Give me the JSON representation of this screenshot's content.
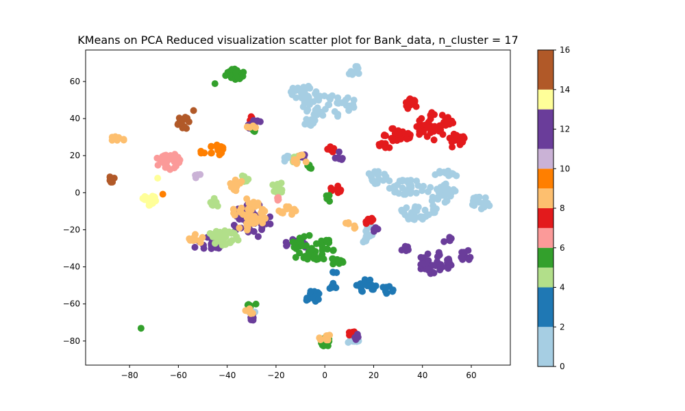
{
  "chart_data": {
    "type": "scatter",
    "title": "KMeans on PCA Reduced visualization scatter plot for Bank_data, n_cluster = 17",
    "xlabel": "",
    "ylabel": "",
    "xlim": [
      -98,
      76
    ],
    "ylim": [
      -93,
      77
    ],
    "x_ticks": [
      -80,
      -60,
      -40,
      -20,
      0,
      20,
      40,
      60
    ],
    "y_ticks": [
      -80,
      -60,
      -40,
      -20,
      0,
      20,
      40,
      60
    ],
    "x_tick_labels": [
      "−80",
      "−60",
      "−40",
      "−20",
      "0",
      "20",
      "40",
      "60"
    ],
    "y_tick_labels": [
      "−80",
      "−60",
      "−40",
      "−20",
      "0",
      "20",
      "40",
      "60"
    ],
    "grid": false,
    "colormap": "Paired",
    "colorbar": {
      "min": 0,
      "max": 16,
      "ticks": [
        0,
        2,
        4,
        6,
        8,
        10,
        12,
        14,
        16
      ],
      "tick_labels": [
        "0",
        "2",
        "4",
        "6",
        "8",
        "10",
        "12",
        "14",
        "16"
      ],
      "bands": [
        {
          "from": 0,
          "to": 2,
          "color": "#a6cee3"
        },
        {
          "from": 2,
          "to": 4,
          "color": "#1f78b4"
        },
        {
          "from": 4,
          "to": 5,
          "color": "#b2df8a"
        },
        {
          "from": 5,
          "to": 6,
          "color": "#33a02c"
        },
        {
          "from": 6,
          "to": 7,
          "color": "#fb9a99"
        },
        {
          "from": 7,
          "to": 8,
          "color": "#e31a1c"
        },
        {
          "from": 8,
          "to": 9,
          "color": "#fdbf6f"
        },
        {
          "from": 9,
          "to": 10,
          "color": "#ff7f00"
        },
        {
          "from": 10,
          "to": 11,
          "color": "#cab2d6"
        },
        {
          "from": 11,
          "to": 13,
          "color": "#6a3d9a"
        },
        {
          "from": 13,
          "to": 14,
          "color": "#ffff99"
        },
        {
          "from": 14,
          "to": 16,
          "color": "#b15928"
        }
      ]
    },
    "marker_color_by_cluster": {
      "0": "#a6cee3",
      "1": "#a6cee3",
      "2": "#1f78b4",
      "3": "#1f78b4",
      "4": "#b2df8a",
      "5": "#33a02c",
      "6": "#fb9a99",
      "7": "#e31a1c",
      "8": "#fdbf6f",
      "9": "#ff7f00",
      "10": "#cab2d6",
      "11": "#6a3d9a",
      "12": "#6a3d9a",
      "13": "#ffff99",
      "14": "#b15928",
      "15": "#b15928",
      "16": "#b15928"
    },
    "clusters": [
      {
        "cluster": 0,
        "x": 12,
        "y": 66,
        "rx": 3,
        "ry": 2.5,
        "n": 12
      },
      {
        "cluster": 0,
        "x": -8,
        "y": 54,
        "rx": 6,
        "ry": 5,
        "n": 30
      },
      {
        "cluster": 0,
        "x": 2,
        "y": 47,
        "rx": 12,
        "ry": 6,
        "n": 40
      },
      {
        "cluster": 0,
        "x": -6,
        "y": 38,
        "rx": 2.5,
        "ry": 2,
        "n": 8
      },
      {
        "cluster": 1,
        "x": 22,
        "y": 8,
        "rx": 5,
        "ry": 4,
        "n": 18
      },
      {
        "cluster": 1,
        "x": 34,
        "y": 3,
        "rx": 8,
        "ry": 4,
        "n": 30
      },
      {
        "cluster": 0,
        "x": 38,
        "y": -10,
        "rx": 8,
        "ry": 5,
        "n": 30
      },
      {
        "cluster": 0,
        "x": 48,
        "y": 0,
        "rx": 6,
        "ry": 6,
        "n": 25
      },
      {
        "cluster": 0,
        "x": 50,
        "y": 10,
        "rx": 5,
        "ry": 2,
        "n": 12
      },
      {
        "cluster": 1,
        "x": 64,
        "y": -5,
        "rx": 4,
        "ry": 4,
        "n": 18
      },
      {
        "cluster": 1,
        "x": 17,
        "y": -22,
        "rx": 4,
        "ry": 5,
        "n": 14
      },
      {
        "cluster": 1,
        "x": -30,
        "y": -64,
        "rx": 2,
        "ry": 2,
        "n": 6
      },
      {
        "cluster": 1,
        "x": 12,
        "y": -80,
        "rx": 3,
        "ry": 2,
        "n": 8
      },
      {
        "cluster": 1,
        "x": -14,
        "y": 18,
        "rx": 3,
        "ry": 2,
        "n": 8
      },
      {
        "cluster": 3,
        "x": -5,
        "y": -56,
        "rx": 4,
        "ry": 3,
        "n": 16
      },
      {
        "cluster": 3,
        "x": 3,
        "y": -50,
        "rx": 2,
        "ry": 2,
        "n": 8
      },
      {
        "cluster": 3,
        "x": 17,
        "y": -50,
        "rx": 4,
        "ry": 4,
        "n": 18
      },
      {
        "cluster": 3,
        "x": 26,
        "y": -52,
        "rx": 2.5,
        "ry": 2.5,
        "n": 8
      },
      {
        "cluster": 3,
        "x": 4,
        "y": -43,
        "rx": 1,
        "ry": 1,
        "n": 3
      },
      {
        "cluster": 7,
        "x": 35,
        "y": 48,
        "rx": 3,
        "ry": 3,
        "n": 12
      },
      {
        "cluster": 7,
        "x": 30,
        "y": 32,
        "rx": 6,
        "ry": 5,
        "n": 28
      },
      {
        "cluster": 7,
        "x": 45,
        "y": 36,
        "rx": 8,
        "ry": 8,
        "n": 45
      },
      {
        "cluster": 7,
        "x": 54,
        "y": 28,
        "rx": 4,
        "ry": 4,
        "n": 16
      },
      {
        "cluster": 7,
        "x": 24,
        "y": 25,
        "rx": 3,
        "ry": 2,
        "n": 8
      },
      {
        "cluster": 7,
        "x": 5,
        "y": 2,
        "rx": 3,
        "ry": 2,
        "n": 8
      },
      {
        "cluster": 7,
        "x": 18,
        "y": -15,
        "rx": 2,
        "ry": 2,
        "n": 6
      },
      {
        "cluster": 7,
        "x": 11,
        "y": -76,
        "rx": 2,
        "ry": 2,
        "n": 5
      },
      {
        "cluster": 7,
        "x": -30,
        "y": 40,
        "rx": 1.5,
        "ry": 1.5,
        "n": 4
      },
      {
        "cluster": 7,
        "x": 2,
        "y": 23,
        "rx": 2,
        "ry": 2,
        "n": 5
      },
      {
        "cluster": 12,
        "x": 45,
        "y": -38,
        "rx": 7,
        "ry": 6,
        "n": 45
      },
      {
        "cluster": 12,
        "x": 58,
        "y": -34,
        "rx": 3,
        "ry": 3,
        "n": 10
      },
      {
        "cluster": 12,
        "x": 33,
        "y": -30,
        "rx": 2,
        "ry": 2,
        "n": 6
      },
      {
        "cluster": 12,
        "x": 50,
        "y": -25,
        "rx": 2,
        "ry": 2,
        "n": 6
      },
      {
        "cluster": 12,
        "x": -30,
        "y": -15,
        "rx": 8,
        "ry": 10,
        "n": 40
      },
      {
        "cluster": 12,
        "x": -48,
        "y": -28,
        "rx": 6,
        "ry": 4,
        "n": 20
      },
      {
        "cluster": 12,
        "x": -12,
        "y": -28,
        "rx": 5,
        "ry": 3,
        "n": 14
      },
      {
        "cluster": 12,
        "x": -29,
        "y": 37,
        "rx": 3,
        "ry": 3,
        "n": 10
      },
      {
        "cluster": 12,
        "x": -30,
        "y": -67,
        "rx": 1.5,
        "ry": 2,
        "n": 5
      },
      {
        "cluster": 12,
        "x": 14,
        "y": -78,
        "rx": 2,
        "ry": 2,
        "n": 5
      },
      {
        "cluster": 12,
        "x": 5,
        "y": 20,
        "rx": 3,
        "ry": 3,
        "n": 6
      },
      {
        "cluster": 12,
        "x": 20,
        "y": -20,
        "rx": 2,
        "ry": 2,
        "n": 5
      },
      {
        "cluster": 12,
        "x": -10,
        "y": 20,
        "rx": 2,
        "ry": 2,
        "n": 5
      },
      {
        "cluster": 5,
        "x": -37,
        "y": 64,
        "rx": 4,
        "ry": 3,
        "n": 25
      },
      {
        "cluster": 5,
        "x": -45,
        "y": 59,
        "rx": 0.5,
        "ry": 0.5,
        "n": 1
      },
      {
        "cluster": 5,
        "x": -5,
        "y": -30,
        "rx": 10,
        "ry": 7,
        "n": 50
      },
      {
        "cluster": 5,
        "x": 5,
        "y": -37,
        "rx": 3,
        "ry": 2,
        "n": 10
      },
      {
        "cluster": 5,
        "x": 0,
        "y": -80,
        "rx": 3,
        "ry": 3,
        "n": 12
      },
      {
        "cluster": 5,
        "x": -30,
        "y": -60,
        "rx": 2,
        "ry": 2,
        "n": 6
      },
      {
        "cluster": 5,
        "x": -75,
        "y": -73,
        "rx": 0.5,
        "ry": 0.5,
        "n": 1
      },
      {
        "cluster": 5,
        "x": -6,
        "y": 14,
        "rx": 1.5,
        "ry": 1,
        "n": 4
      },
      {
        "cluster": 5,
        "x": -29,
        "y": 33,
        "rx": 1.5,
        "ry": 1.5,
        "n": 4
      },
      {
        "cluster": 5,
        "x": 2,
        "y": -3,
        "rx": 2,
        "ry": 2,
        "n": 5
      },
      {
        "cluster": 4,
        "x": -42,
        "y": -25,
        "rx": 7,
        "ry": 5,
        "n": 35
      },
      {
        "cluster": 4,
        "x": -45,
        "y": -6,
        "rx": 2,
        "ry": 3,
        "n": 10
      },
      {
        "cluster": 4,
        "x": -19,
        "y": 3,
        "rx": 3,
        "ry": 3,
        "n": 10
      },
      {
        "cluster": 4,
        "x": -12,
        "y": 18,
        "rx": 2,
        "ry": 2,
        "n": 6
      },
      {
        "cluster": 4,
        "x": -33,
        "y": 8,
        "rx": 2,
        "ry": 2,
        "n": 6
      },
      {
        "cluster": 8,
        "x": -31,
        "y": -12,
        "rx": 7,
        "ry": 9,
        "n": 45
      },
      {
        "cluster": 8,
        "x": -36,
        "y": 4,
        "rx": 3,
        "ry": 3,
        "n": 12
      },
      {
        "cluster": 8,
        "x": -53,
        "y": -25,
        "rx": 3,
        "ry": 3,
        "n": 10
      },
      {
        "cluster": 8,
        "x": -15,
        "y": -10,
        "rx": 4,
        "ry": 3,
        "n": 14
      },
      {
        "cluster": 8,
        "x": -85,
        "y": 29,
        "rx": 3,
        "ry": 1.5,
        "n": 8
      },
      {
        "cluster": 8,
        "x": -30,
        "y": 36,
        "rx": 2,
        "ry": 2,
        "n": 5
      },
      {
        "cluster": 8,
        "x": -10,
        "y": 18,
        "rx": 3,
        "ry": 3,
        "n": 8
      },
      {
        "cluster": 8,
        "x": 0,
        "y": -78,
        "rx": 3,
        "ry": 2,
        "n": 8
      },
      {
        "cluster": 8,
        "x": -31,
        "y": -64,
        "rx": 2,
        "ry": 2,
        "n": 5
      },
      {
        "cluster": 8,
        "x": 10,
        "y": -18,
        "rx": 3,
        "ry": 2,
        "n": 6
      },
      {
        "cluster": 6,
        "x": -64,
        "y": 17,
        "rx": 5,
        "ry": 5,
        "n": 30
      },
      {
        "cluster": 6,
        "x": -20,
        "y": -3,
        "rx": 1.5,
        "ry": 1.5,
        "n": 4
      },
      {
        "cluster": 9,
        "x": -45,
        "y": 23,
        "rx": 4,
        "ry": 3,
        "n": 16
      },
      {
        "cluster": 9,
        "x": -50,
        "y": 22,
        "rx": 1,
        "ry": 1,
        "n": 3
      },
      {
        "cluster": 9,
        "x": -66,
        "y": -1,
        "rx": 0.5,
        "ry": 0.5,
        "n": 1
      },
      {
        "cluster": 14,
        "x": -58,
        "y": 38,
        "rx": 3,
        "ry": 4,
        "n": 16
      },
      {
        "cluster": 14,
        "x": -88,
        "y": 7,
        "rx": 3,
        "ry": 2,
        "n": 10
      },
      {
        "cluster": 14,
        "x": -54,
        "y": 44,
        "rx": 0.5,
        "ry": 0.5,
        "n": 1
      },
      {
        "cluster": 13,
        "x": -72,
        "y": -4,
        "rx": 3,
        "ry": 3,
        "n": 16
      },
      {
        "cluster": 13,
        "x": -68,
        "y": 8,
        "rx": 0.5,
        "ry": 0.5,
        "n": 1
      },
      {
        "cluster": 10,
        "x": -52,
        "y": 9,
        "rx": 1.5,
        "ry": 1.5,
        "n": 4
      }
    ]
  }
}
